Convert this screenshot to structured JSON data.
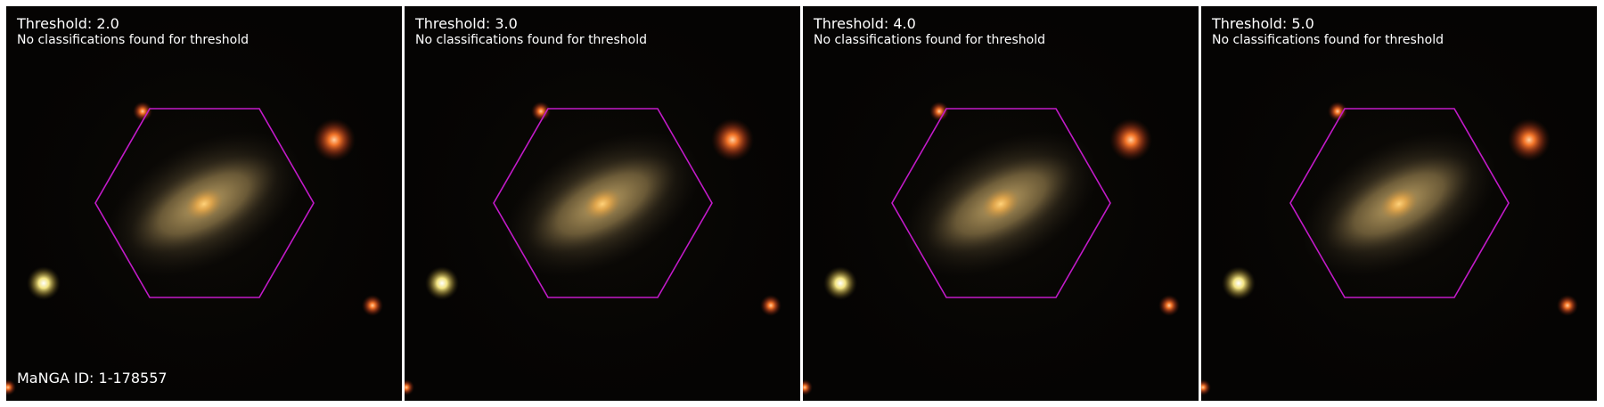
{
  "panels": [
    {
      "title": "Threshold: 2.0",
      "subtitle": "No classifications found for threshold"
    },
    {
      "title": "Threshold: 3.0",
      "subtitle": "No classifications found for threshold"
    },
    {
      "title": "Threshold: 4.0",
      "subtitle": "No classifications found for threshold"
    },
    {
      "title": "Threshold: 5.0",
      "subtitle": "No classifications found for threshold"
    }
  ],
  "manga_id": "MaNGA ID: 1-178557",
  "colors": {
    "hexagon": "#c21ac8",
    "background": "#050403",
    "text": "#ffffff"
  }
}
